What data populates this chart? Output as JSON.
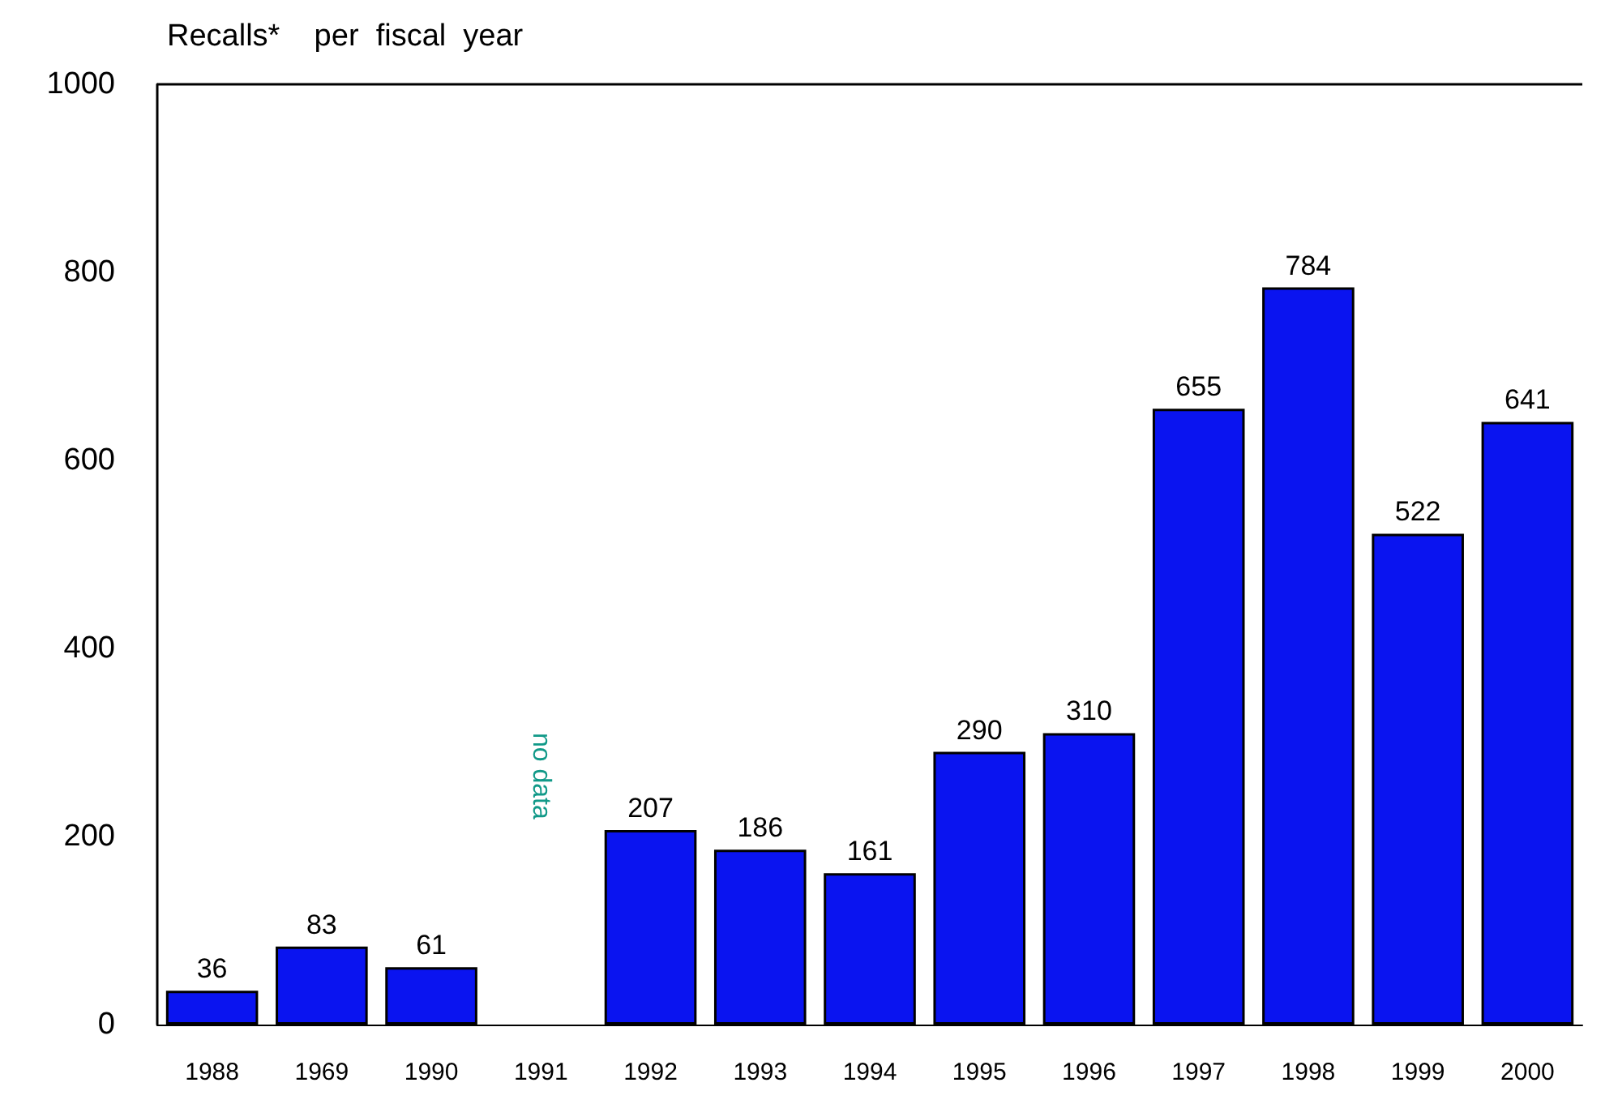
{
  "chart_data": {
    "type": "bar",
    "title": "Recalls*    per  fiscal  year",
    "categories": [
      "1988",
      "1969",
      "1990",
      "1991",
      "1992",
      "1993",
      "1994",
      "1995",
      "1996",
      "1997",
      "1998",
      "1999",
      "2000"
    ],
    "values": [
      36,
      83,
      61,
      null,
      207,
      186,
      161,
      290,
      310,
      655,
      784,
      522,
      641
    ],
    "color": "#0a14f0",
    "ylim": [
      0,
      1000
    ],
    "yticks": [
      0,
      200,
      400,
      600,
      800,
      1000
    ],
    "grid": false,
    "data_labels": true,
    "annotations": [
      "no data"
    ]
  }
}
